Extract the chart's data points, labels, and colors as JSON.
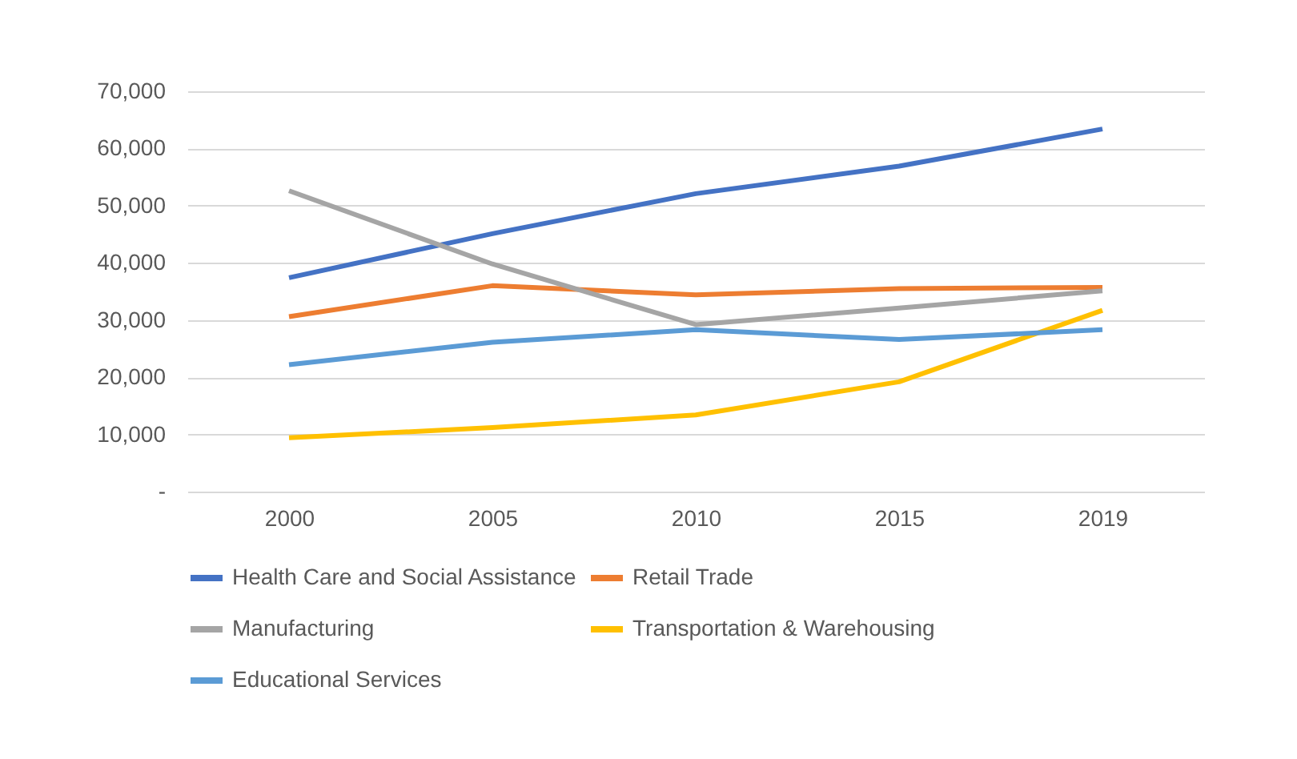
{
  "chart_data": {
    "type": "line",
    "categories": [
      "2000",
      "2005",
      "2010",
      "2015",
      "2019"
    ],
    "series": [
      {
        "name": "Health Care and Social Assistance",
        "color": "#4472c4",
        "values": [
          37400,
          45100,
          52100,
          56900,
          63400
        ]
      },
      {
        "name": "Retail Trade",
        "color": "#ed7d31",
        "values": [
          30600,
          36000,
          34400,
          35500,
          35700
        ]
      },
      {
        "name": "Manufacturing",
        "color": "#a5a5a5",
        "values": [
          52600,
          39800,
          29200,
          32100,
          35100
        ]
      },
      {
        "name": "Transportation & Warehousing",
        "color": "#ffc000",
        "values": [
          9400,
          11200,
          13400,
          19200,
          31700
        ]
      },
      {
        "name": "Educational Services",
        "color": "#5b9bd5",
        "values": [
          22200,
          26100,
          28300,
          26600,
          28300
        ]
      }
    ],
    "ylim": [
      0,
      70000
    ],
    "yticks": [
      {
        "value": 0,
        "label": "-"
      },
      {
        "value": 10000,
        "label": "10,000"
      },
      {
        "value": 20000,
        "label": "20,000"
      },
      {
        "value": 30000,
        "label": "30,000"
      },
      {
        "value": 40000,
        "label": "40,000"
      },
      {
        "value": 50000,
        "label": "50,000"
      },
      {
        "value": 60000,
        "label": "60,000"
      },
      {
        "value": 70000,
        "label": "70,000"
      }
    ],
    "grid": "y",
    "legend": "bottom",
    "marker": "none",
    "line_style": "solid"
  }
}
